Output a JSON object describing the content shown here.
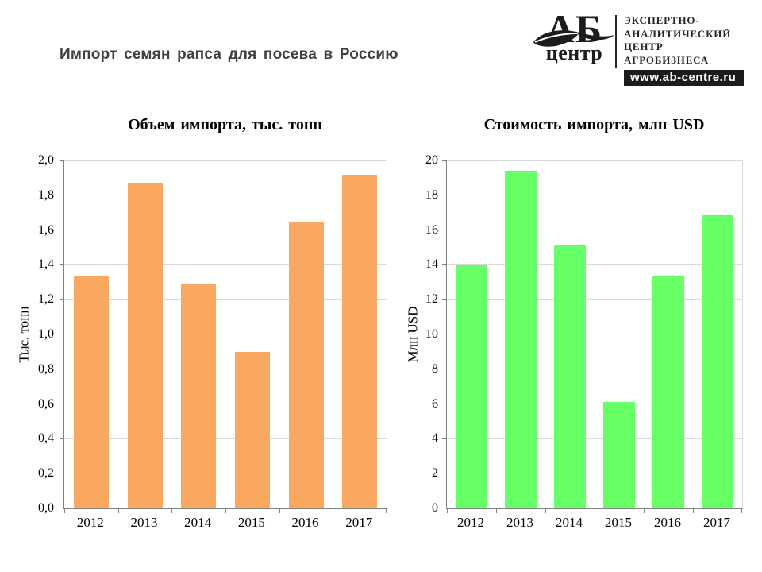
{
  "page": {
    "title": "Импорт семян рапса для посева в Россию",
    "title_color": "#404040"
  },
  "logo": {
    "abbr": "АБ",
    "abbr_sub": "центр",
    "org_lines": [
      "ЭКСПЕРТНО-",
      "АНАЛИТИЧЕСКИЙ",
      "ЦЕНТР",
      "АГРОБИЗНЕСА"
    ],
    "website": "www.ab-centre.ru"
  },
  "chart_data": [
    {
      "type": "bar",
      "title": "Объем импорта, тыс. тонн",
      "ylabel": "Тыс. тонн",
      "categories": [
        "2012",
        "2013",
        "2014",
        "2015",
        "2016",
        "2017"
      ],
      "values": [
        1.34,
        1.87,
        1.29,
        0.9,
        1.65,
        1.92
      ],
      "ylim": [
        0,
        2.0
      ],
      "ytick_step": 0.2,
      "ytick_labels": [
        "0,0",
        "0,2",
        "0,4",
        "0,6",
        "0,8",
        "1,0",
        "1,2",
        "1,4",
        "1,6",
        "1,8",
        "2,0"
      ],
      "bar_color": "#FAA75F",
      "grid": true,
      "legend": "none"
    },
    {
      "type": "bar",
      "title": "Стоимость импорта, млн USD",
      "ylabel": "Млн USD",
      "categories": [
        "2012",
        "2013",
        "2014",
        "2015",
        "2016",
        "2017"
      ],
      "values": [
        14.0,
        19.4,
        15.1,
        6.1,
        13.4,
        16.9
      ],
      "ylim": [
        0,
        20
      ],
      "ytick_step": 2,
      "ytick_labels": [
        "0",
        "2",
        "4",
        "6",
        "8",
        "10",
        "12",
        "14",
        "16",
        "18",
        "20"
      ],
      "bar_color": "#66FF66",
      "grid": true,
      "legend": "none"
    }
  ],
  "colors": {
    "gridline": "#D9D9D9",
    "axis": "#7F7F7F"
  }
}
